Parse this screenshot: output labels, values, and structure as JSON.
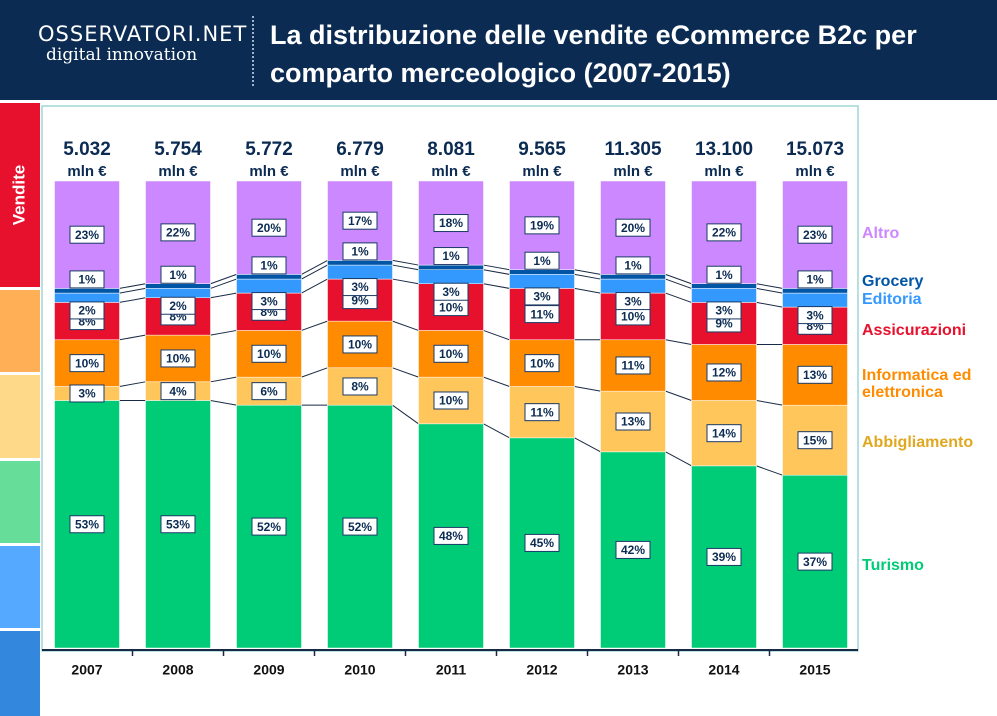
{
  "logo": {
    "name": "OSSERVATORI.NET",
    "tagline": "digital innovation"
  },
  "side_label": "Vendite",
  "chart_data": {
    "type": "stacked_bar_100",
    "title": "La distribuzione delle vendite eCommerce B2c per comparto merceologico (2007-2015)",
    "categories": [
      "2007",
      "2008",
      "2009",
      "2010",
      "2011",
      "2012",
      "2013",
      "2014",
      "2015"
    ],
    "totals": [
      5032,
      5754,
      5772,
      6779,
      8081,
      9565,
      11305,
      13100,
      15073
    ],
    "total_labels": [
      "5.032",
      "5.754",
      "5.772",
      "6.779",
      "8.081",
      "9.565",
      "11.305",
      "13.100",
      "15.073"
    ],
    "total_unit": "mln €",
    "ylim": [
      0,
      100
    ],
    "series": [
      {
        "name": "Turismo",
        "color": "#00cc77",
        "values": [
          53,
          53,
          52,
          52,
          48,
          45,
          42,
          39,
          37
        ],
        "value_labels": [
          "53%",
          "53%",
          "52%",
          "52%",
          "48%",
          "45%",
          "42%",
          "39%",
          "37%"
        ]
      },
      {
        "name": "Abbigliamento",
        "color": "#ffc65c",
        "values": [
          3,
          4,
          6,
          8,
          10,
          11,
          13,
          14,
          15
        ],
        "value_labels": [
          "3%",
          "4%",
          "6%",
          "8%",
          "10%",
          "11%",
          "13%",
          "14%",
          "15%"
        ]
      },
      {
        "name": "Informatica ed elettronica",
        "color": "#ff8c00",
        "values": [
          10,
          10,
          10,
          10,
          10,
          10,
          11,
          12,
          13
        ],
        "value_labels": [
          "10%",
          "10%",
          "10%",
          "10%",
          "10%",
          "10%",
          "11%",
          "12%",
          "13%"
        ]
      },
      {
        "name": "Assicurazioni",
        "color": "#e8112d",
        "values": [
          8,
          8,
          8,
          9,
          10,
          11,
          10,
          9,
          8
        ],
        "value_labels": [
          "8%",
          "8%",
          "8%",
          "9%",
          "10%",
          "11%",
          "10%",
          "9%",
          "8%"
        ]
      },
      {
        "name": "Editoria",
        "color": "#3399ff",
        "values": [
          2,
          2,
          3,
          3,
          3,
          3,
          3,
          3,
          3
        ],
        "value_labels": [
          "2%",
          "2%",
          "3%",
          "3%",
          "3%",
          "3%",
          "3%",
          "3%",
          "3%"
        ]
      },
      {
        "name": "Grocery",
        "color": "#0055a5",
        "values": [
          1,
          1,
          1,
          1,
          1,
          1,
          1,
          1,
          1
        ],
        "value_labels": [
          "1%",
          "1%",
          "1%",
          "1%",
          "1%",
          "1%",
          "1%",
          "1%",
          "1%"
        ]
      },
      {
        "name": "Altro",
        "color": "#cc88ff",
        "values": [
          23,
          22,
          20,
          17,
          18,
          19,
          20,
          22,
          23
        ],
        "value_labels": [
          "23%",
          "22%",
          "20%",
          "17%",
          "18%",
          "19%",
          "20%",
          "22%",
          "23%"
        ]
      }
    ]
  }
}
